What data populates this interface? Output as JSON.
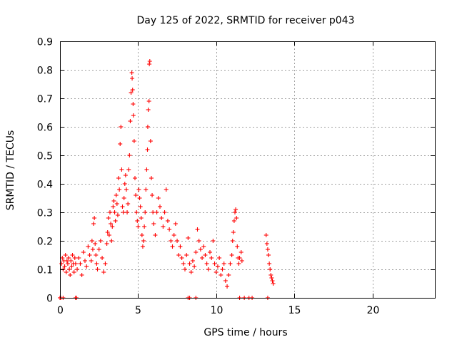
{
  "chart_data": {
    "type": "scatter",
    "title": "Day 125 of 2022, SRMTID for receiver p043",
    "xlabel": "GPS time / hours",
    "ylabel": "SRMTID / TECUs",
    "xlim": [
      0,
      24
    ],
    "ylim": [
      0,
      0.9
    ],
    "xticks": [
      0,
      5,
      10,
      15,
      20
    ],
    "xtick_labels": [
      "0",
      "5",
      "10",
      "15",
      "20"
    ],
    "yticks": [
      0,
      0.1,
      0.2,
      0.3,
      0.4,
      0.5,
      0.6,
      0.7,
      0.8,
      0.9
    ],
    "ytick_labels": [
      "0",
      "0.1",
      "0.2",
      "0.3",
      "0.4",
      "0.5",
      "0.6",
      "0.7",
      "0.8",
      "0.9"
    ],
    "grid": true,
    "marker": "+",
    "color": "#ff0000",
    "series": [
      {
        "name": "SRMTID",
        "points": [
          [
            0.0,
            0.0
          ],
          [
            0.1,
            0.12
          ],
          [
            0.15,
            0.14
          ],
          [
            0.2,
            0.1
          ],
          [
            0.25,
            0.13
          ],
          [
            0.3,
            0.11
          ],
          [
            0.35,
            0.15
          ],
          [
            0.4,
            0.09
          ],
          [
            0.45,
            0.13
          ],
          [
            0.5,
            0.12
          ],
          [
            0.55,
            0.14
          ],
          [
            0.6,
            0.1
          ],
          [
            0.65,
            0.08
          ],
          [
            0.7,
            0.13
          ],
          [
            0.75,
            0.11
          ],
          [
            0.8,
            0.15
          ],
          [
            0.85,
            0.12
          ],
          [
            0.9,
            0.09
          ],
          [
            0.95,
            0.14
          ],
          [
            1.0,
            0.12
          ],
          [
            1.1,
            0.1
          ],
          [
            1.2,
            0.14
          ],
          [
            1.3,
            0.12
          ],
          [
            1.4,
            0.08
          ],
          [
            1.5,
            0.16
          ],
          [
            1.6,
            0.13
          ],
          [
            1.7,
            0.11
          ],
          [
            1.8,
            0.18
          ],
          [
            1.9,
            0.15
          ],
          [
            2.0,
            0.13
          ],
          [
            2.05,
            0.2
          ],
          [
            2.1,
            0.17
          ],
          [
            2.15,
            0.26
          ],
          [
            2.2,
            0.28
          ],
          [
            2.25,
            0.19
          ],
          [
            2.3,
            0.15
          ],
          [
            2.35,
            0.12
          ],
          [
            2.4,
            0.1
          ],
          [
            2.5,
            0.17
          ],
          [
            2.6,
            0.2
          ],
          [
            2.7,
            0.14
          ],
          [
            2.8,
            0.09
          ],
          [
            2.9,
            0.12
          ],
          [
            3.0,
            0.19
          ],
          [
            3.05,
            0.23
          ],
          [
            3.1,
            0.28
          ],
          [
            3.15,
            0.22
          ],
          [
            3.2,
            0.3
          ],
          [
            3.25,
            0.26
          ],
          [
            3.3,
            0.2
          ],
          [
            3.35,
            0.25
          ],
          [
            3.4,
            0.32
          ],
          [
            3.45,
            0.34
          ],
          [
            3.5,
            0.3
          ],
          [
            3.55,
            0.27
          ],
          [
            3.6,
            0.36
          ],
          [
            3.65,
            0.33
          ],
          [
            3.7,
            0.29
          ],
          [
            3.75,
            0.42
          ],
          [
            3.8,
            0.38
          ],
          [
            3.85,
            0.54
          ],
          [
            3.9,
            0.6
          ],
          [
            3.95,
            0.45
          ],
          [
            4.0,
            0.32
          ],
          [
            4.05,
            0.3
          ],
          [
            4.1,
            0.35
          ],
          [
            4.15,
            0.4
          ],
          [
            4.2,
            0.43
          ],
          [
            4.25,
            0.38
          ],
          [
            4.3,
            0.3
          ],
          [
            4.35,
            0.33
          ],
          [
            4.4,
            0.45
          ],
          [
            4.45,
            0.5
          ],
          [
            4.5,
            0.62
          ],
          [
            4.55,
            0.72
          ],
          [
            4.6,
            0.79
          ],
          [
            4.62,
            0.77
          ],
          [
            4.65,
            0.73
          ],
          [
            4.68,
            0.68
          ],
          [
            4.7,
            0.64
          ],
          [
            4.75,
            0.55
          ],
          [
            4.8,
            0.42
          ],
          [
            4.85,
            0.36
          ],
          [
            4.9,
            0.3
          ],
          [
            4.95,
            0.27
          ],
          [
            5.0,
            0.25
          ],
          [
            5.05,
            0.38
          ],
          [
            5.1,
            0.35
          ],
          [
            5.15,
            0.32
          ],
          [
            5.2,
            0.28
          ],
          [
            5.25,
            0.22
          ],
          [
            5.3,
            0.18
          ],
          [
            5.35,
            0.2
          ],
          [
            5.4,
            0.25
          ],
          [
            5.45,
            0.3
          ],
          [
            5.5,
            0.38
          ],
          [
            5.55,
            0.45
          ],
          [
            5.6,
            0.52
          ],
          [
            5.62,
            0.6
          ],
          [
            5.65,
            0.66
          ],
          [
            5.7,
            0.69
          ],
          [
            5.72,
            0.82
          ],
          [
            5.75,
            0.83
          ],
          [
            5.8,
            0.55
          ],
          [
            5.85,
            0.42
          ],
          [
            5.9,
            0.36
          ],
          [
            5.95,
            0.3
          ],
          [
            6.0,
            0.26
          ],
          [
            6.1,
            0.22
          ],
          [
            6.2,
            0.3
          ],
          [
            6.3,
            0.35
          ],
          [
            6.4,
            0.32
          ],
          [
            6.5,
            0.28
          ],
          [
            6.6,
            0.25
          ],
          [
            6.7,
            0.3
          ],
          [
            6.8,
            0.38
          ],
          [
            6.9,
            0.27
          ],
          [
            7.0,
            0.24
          ],
          [
            7.1,
            0.2
          ],
          [
            7.2,
            0.18
          ],
          [
            7.3,
            0.22
          ],
          [
            7.4,
            0.26
          ],
          [
            7.5,
            0.2
          ],
          [
            7.6,
            0.15
          ],
          [
            7.7,
            0.18
          ],
          [
            7.8,
            0.14
          ],
          [
            7.9,
            0.12
          ],
          [
            8.0,
            0.1
          ],
          [
            8.1,
            0.15
          ],
          [
            8.2,
            0.21
          ],
          [
            8.3,
            0.12
          ],
          [
            8.4,
            0.09
          ],
          [
            8.5,
            0.13
          ],
          [
            8.6,
            0.11
          ],
          [
            8.7,
            0.16
          ],
          [
            8.8,
            0.24
          ],
          [
            8.9,
            0.2
          ],
          [
            9.0,
            0.17
          ],
          [
            9.1,
            0.14
          ],
          [
            9.2,
            0.18
          ],
          [
            9.3,
            0.15
          ],
          [
            9.4,
            0.12
          ],
          [
            9.5,
            0.1
          ],
          [
            9.6,
            0.16
          ],
          [
            9.7,
            0.14
          ],
          [
            9.8,
            0.2
          ],
          [
            9.9,
            0.12
          ],
          [
            10.0,
            0.09
          ],
          [
            10.1,
            0.11
          ],
          [
            10.2,
            0.14
          ],
          [
            10.3,
            0.08
          ],
          [
            10.4,
            0.1
          ],
          [
            10.5,
            0.12
          ],
          [
            10.6,
            0.06
          ],
          [
            10.7,
            0.04
          ],
          [
            10.8,
            0.08
          ],
          [
            10.9,
            0.12
          ],
          [
            11.0,
            0.15
          ],
          [
            11.05,
            0.2
          ],
          [
            11.1,
            0.23
          ],
          [
            11.15,
            0.27
          ],
          [
            11.2,
            0.3
          ],
          [
            11.25,
            0.31
          ],
          [
            11.3,
            0.28
          ],
          [
            11.35,
            0.18
          ],
          [
            11.4,
            0.14
          ],
          [
            11.45,
            0.12
          ],
          [
            11.5,
            0.14
          ],
          [
            11.6,
            0.16
          ],
          [
            11.65,
            0.13
          ],
          [
            13.2,
            0.22
          ],
          [
            13.25,
            0.19
          ],
          [
            13.3,
            0.17
          ],
          [
            13.35,
            0.15
          ],
          [
            13.4,
            0.12
          ],
          [
            13.45,
            0.1
          ],
          [
            13.5,
            0.08
          ],
          [
            13.55,
            0.07
          ],
          [
            13.6,
            0.06
          ],
          [
            13.65,
            0.05
          ],
          [
            0.05,
            0.0
          ],
          [
            0.2,
            0.0
          ],
          [
            1.0,
            0.0
          ],
          [
            1.05,
            0.0
          ],
          [
            8.2,
            0.0
          ],
          [
            8.3,
            0.0
          ],
          [
            8.7,
            0.0
          ],
          [
            11.5,
            0.0
          ],
          [
            11.8,
            0.0
          ],
          [
            12.1,
            0.0
          ],
          [
            12.3,
            0.0
          ],
          [
            13.3,
            0.0
          ]
        ]
      }
    ]
  }
}
